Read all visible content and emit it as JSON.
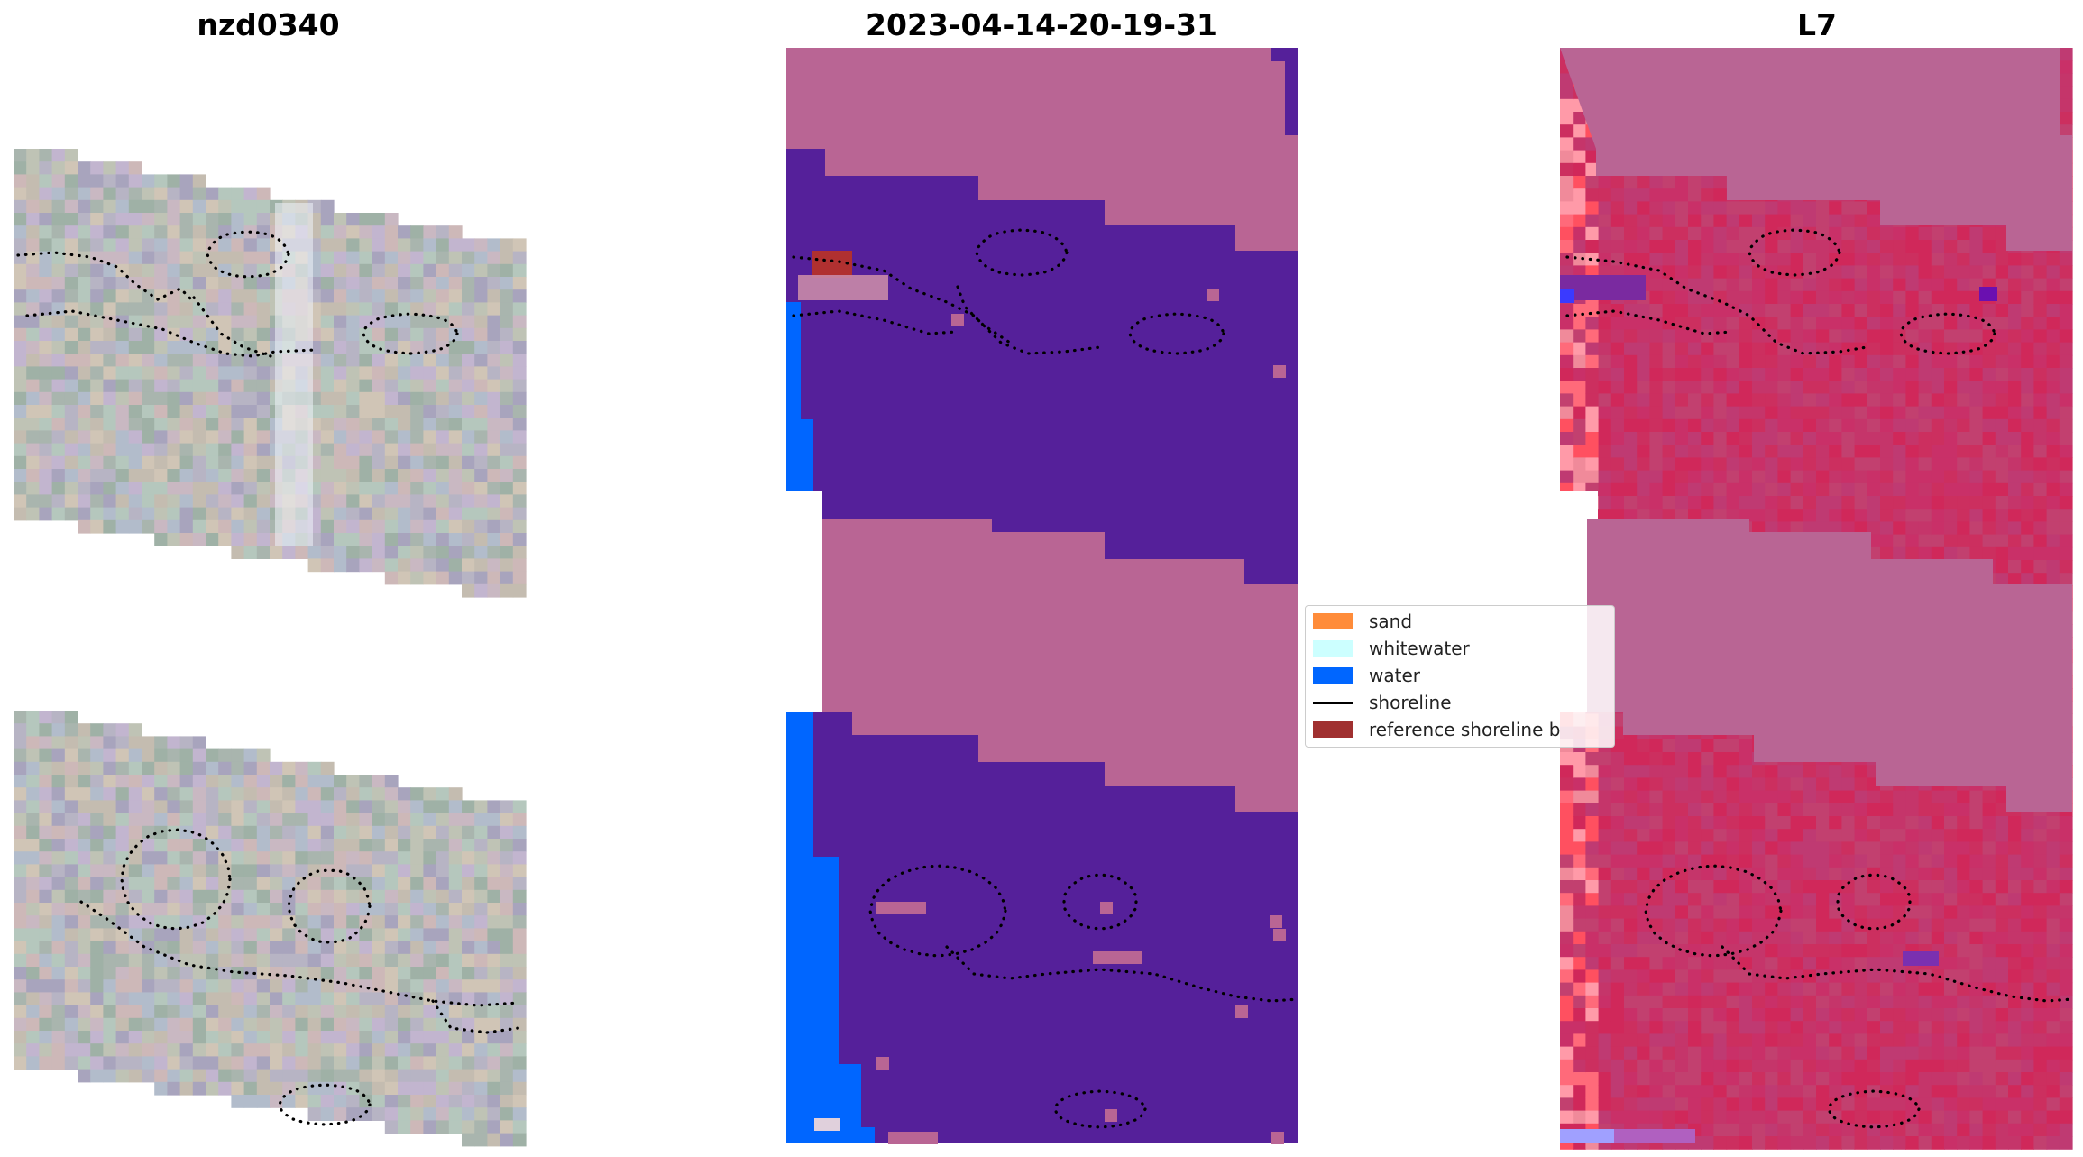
{
  "titles": {
    "left": "nzd0340",
    "center": "2023-04-14-20-19-31",
    "right": "L7"
  },
  "legend": {
    "items": [
      {
        "label": "sand",
        "color": "#ff8c3a",
        "kind": "patch"
      },
      {
        "label": "whitewater",
        "color": "#ccffff",
        "kind": "patch"
      },
      {
        "label": "water",
        "color": "#0066ff",
        "kind": "patch"
      },
      {
        "label": "shoreline",
        "color": "#000000",
        "kind": "line"
      },
      {
        "label": "reference shoreline b",
        "color": "#a03030",
        "kind": "patch"
      }
    ]
  },
  "colors": {
    "land": "#b96594",
    "water_deep": "#55209a",
    "water_blue": "#0066ff",
    "ndwi_land": "#c5356a",
    "ndwi_pink": "#b96594",
    "reference": "#b03030"
  }
}
